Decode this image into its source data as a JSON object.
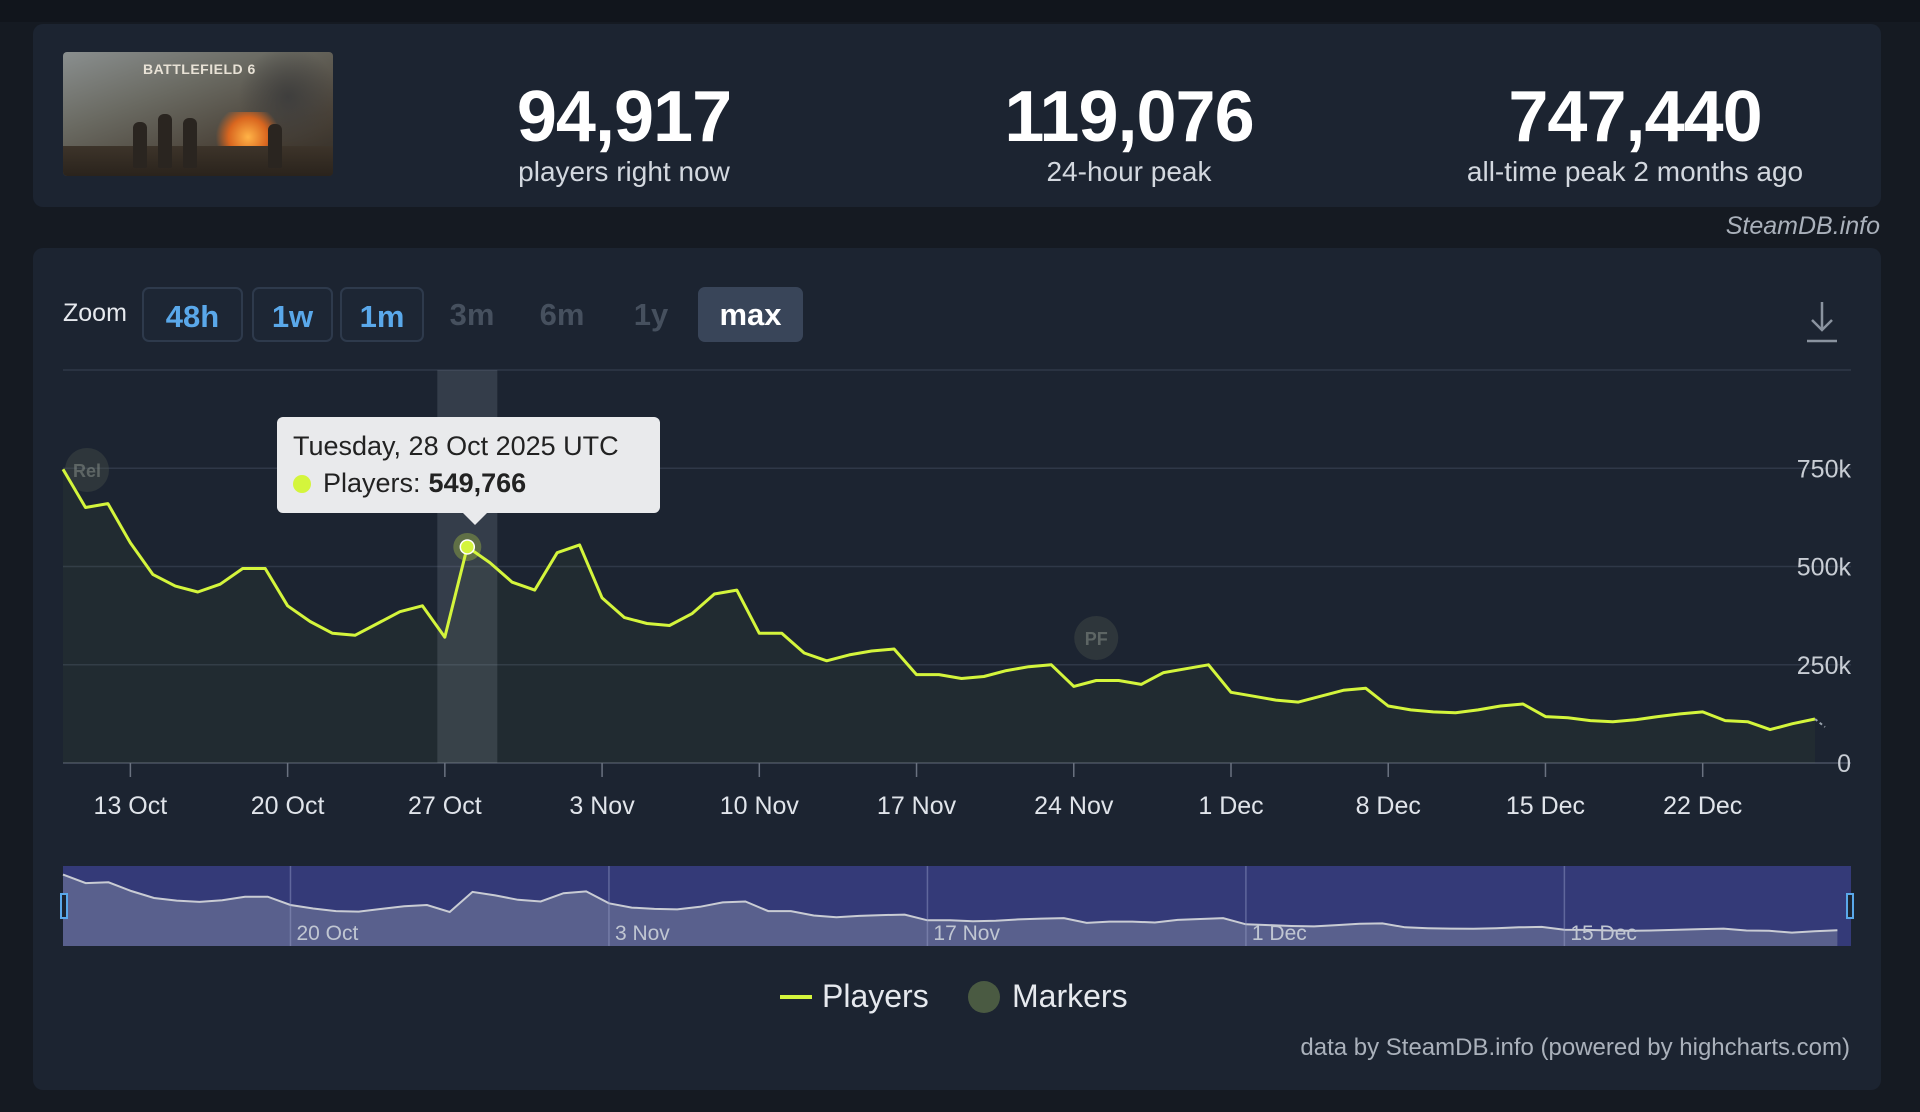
{
  "game": {
    "art_title": "BATTLEFIELD 6"
  },
  "stats": [
    {
      "value": "94,917",
      "label": "players right now"
    },
    {
      "value": "119,076",
      "label": "24-hour peak"
    },
    {
      "value": "747,440",
      "label": "all-time peak 2 months ago"
    }
  ],
  "branding": "SteamDB.info",
  "zoom": {
    "label": "Zoom",
    "buttons": [
      {
        "label": "48h",
        "state": "enabled"
      },
      {
        "label": "1w",
        "state": "enabled"
      },
      {
        "label": "1m",
        "state": "enabled"
      },
      {
        "label": "3m",
        "state": "disabled"
      },
      {
        "label": "6m",
        "state": "disabled"
      },
      {
        "label": "1y",
        "state": "disabled"
      },
      {
        "label": "max",
        "state": "selected"
      }
    ]
  },
  "tooltip": {
    "date": "Tuesday, 28 Oct 2025 UTC",
    "series": "Players:",
    "value": "549,766"
  },
  "legend": {
    "players": "Players",
    "markers": "Markers"
  },
  "markers": [
    {
      "label": "Rel",
      "date": "2025-10-10"
    },
    {
      "label": "PF",
      "date": "2025-11-25"
    }
  ],
  "credits": "data by SteamDB.info (powered by highcharts.com)",
  "colors": {
    "series": "#d4f53c",
    "accent": "#5aa8ea",
    "navigator": "#343a78",
    "background": "#1c2431"
  },
  "chart_data": {
    "type": "line",
    "series": [
      {
        "name": "Players",
        "x": [
          "2025-10-10",
          "2025-10-11",
          "2025-10-12",
          "2025-10-13",
          "2025-10-14",
          "2025-10-15",
          "2025-10-16",
          "2025-10-17",
          "2025-10-18",
          "2025-10-19",
          "2025-10-20",
          "2025-10-21",
          "2025-10-22",
          "2025-10-23",
          "2025-10-24",
          "2025-10-25",
          "2025-10-26",
          "2025-10-27",
          "2025-10-28",
          "2025-10-29",
          "2025-10-30",
          "2025-10-31",
          "2025-11-01",
          "2025-11-02",
          "2025-11-03",
          "2025-11-04",
          "2025-11-05",
          "2025-11-06",
          "2025-11-07",
          "2025-11-08",
          "2025-11-09",
          "2025-11-10",
          "2025-11-11",
          "2025-11-12",
          "2025-11-13",
          "2025-11-14",
          "2025-11-15",
          "2025-11-16",
          "2025-11-17",
          "2025-11-18",
          "2025-11-19",
          "2025-11-20",
          "2025-11-21",
          "2025-11-22",
          "2025-11-23",
          "2025-11-24",
          "2025-11-25",
          "2025-11-26",
          "2025-11-27",
          "2025-11-28",
          "2025-11-29",
          "2025-11-30",
          "2025-12-01",
          "2025-12-02",
          "2025-12-03",
          "2025-12-04",
          "2025-12-05",
          "2025-12-06",
          "2025-12-07",
          "2025-12-08",
          "2025-12-09",
          "2025-12-10",
          "2025-12-11",
          "2025-12-12",
          "2025-12-13",
          "2025-12-14",
          "2025-12-15",
          "2025-12-16",
          "2025-12-17",
          "2025-12-18",
          "2025-12-19",
          "2025-12-20",
          "2025-12-21",
          "2025-12-22",
          "2025-12-23",
          "2025-12-24",
          "2025-12-25",
          "2025-12-26",
          "2025-12-27"
        ],
        "values": [
          747440,
          650000,
          660000,
          560000,
          480000,
          450000,
          435000,
          455000,
          495000,
          495000,
          400000,
          360000,
          330000,
          325000,
          355000,
          385000,
          400000,
          320000,
          549766,
          510000,
          460000,
          440000,
          535000,
          555000,
          420000,
          370000,
          355000,
          350000,
          380000,
          430000,
          440000,
          330000,
          330000,
          280000,
          260000,
          275000,
          285000,
          290000,
          225000,
          225000,
          215000,
          220000,
          235000,
          245000,
          250000,
          195000,
          210000,
          210000,
          200000,
          230000,
          240000,
          250000,
          180000,
          170000,
          160000,
          155000,
          170000,
          185000,
          190000,
          145000,
          135000,
          130000,
          128000,
          135000,
          145000,
          150000,
          118000,
          115000,
          108000,
          105000,
          110000,
          118000,
          125000,
          130000,
          108000,
          105000,
          85000,
          100000,
          112000
        ]
      }
    ],
    "xlabel": "",
    "ylabel": "",
    "ylim": [
      0,
      1000000
    ],
    "y_ticks": [
      "0",
      "250k",
      "500k",
      "750k"
    ],
    "y_tick_values": [
      0,
      250000,
      500000,
      750000
    ],
    "x_ticks": [
      "13 Oct",
      "20 Oct",
      "27 Oct",
      "3 Nov",
      "10 Nov",
      "17 Nov",
      "24 Nov",
      "1 Dec",
      "8 Dec",
      "15 Dec",
      "22 Dec"
    ],
    "x_tick_dates": [
      "2025-10-13",
      "2025-10-20",
      "2025-10-27",
      "2025-11-03",
      "2025-11-10",
      "2025-11-17",
      "2025-11-24",
      "2025-12-01",
      "2025-12-08",
      "2025-12-15",
      "2025-12-22"
    ],
    "navigator_ticks": [
      "20 Oct",
      "3 Nov",
      "17 Nov",
      "1 Dec",
      "15 Dec"
    ],
    "navigator_tick_dates": [
      "2025-10-20",
      "2025-11-03",
      "2025-11-17",
      "2025-12-01",
      "2025-12-15"
    ],
    "highlighted_point": {
      "x": "2025-10-28",
      "y": 549766
    },
    "grid": true,
    "legend_position": "bottom-center"
  }
}
